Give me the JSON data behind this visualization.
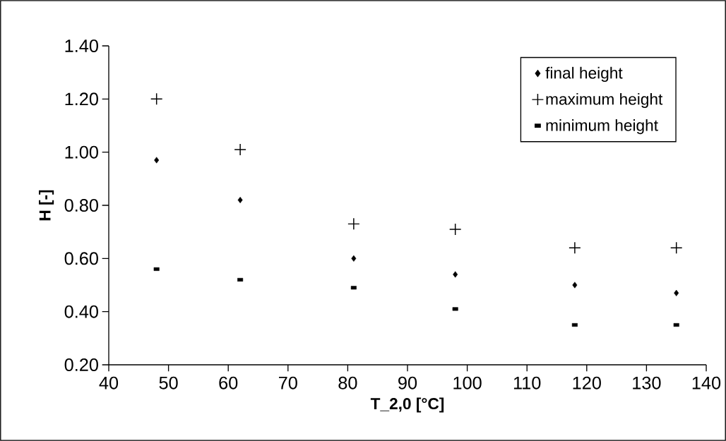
{
  "chart_data": {
    "type": "scatter",
    "xlabel": "T_2,0 [°C]",
    "ylabel": "H [-]",
    "x": [
      48,
      62,
      81,
      98,
      118,
      135
    ],
    "series": [
      {
        "name": "final height",
        "color": "#000000",
        "marker": "diamond",
        "values": [
          0.97,
          0.82,
          0.6,
          0.54,
          0.5,
          0.47
        ]
      },
      {
        "name": "maximum height",
        "color": "#000000",
        "marker": "cross",
        "values": [
          1.2,
          1.01,
          0.73,
          0.71,
          0.64,
          0.64
        ]
      },
      {
        "name": "minimum height",
        "color": "#000000",
        "marker": "square",
        "values": [
          0.56,
          0.52,
          0.49,
          0.41,
          0.35,
          0.35
        ]
      }
    ],
    "xlim": [
      40,
      140
    ],
    "xticks": [
      40,
      50,
      60,
      70,
      80,
      90,
      100,
      110,
      120,
      130,
      140
    ],
    "ylim": [
      0.2,
      1.4
    ],
    "yticks": [
      {
        "value": 0.2,
        "label": "0.20"
      },
      {
        "value": 0.4,
        "label": "0.40"
      },
      {
        "value": 0.6,
        "label": "0.60"
      },
      {
        "value": 0.8,
        "label": "0.80"
      },
      {
        "value": 1.0,
        "label": "1.00"
      },
      {
        "value": 1.2,
        "label": "1.20"
      },
      {
        "value": 1.4,
        "label": "1.40"
      }
    ],
    "grid": false,
    "legend": "top right"
  }
}
